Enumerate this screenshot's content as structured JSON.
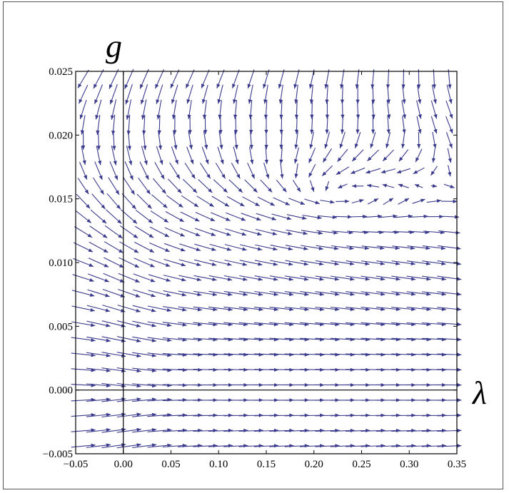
{
  "chart_data": {
    "type": "vector_field",
    "xlabel": "λ",
    "ylabel": "g",
    "xlim": [
      -0.05,
      0.35
    ],
    "ylim": [
      -0.005,
      0.025
    ],
    "x_ticks": [
      "−0.05",
      "0.00",
      "0.05",
      "0.10",
      "0.15",
      "0.20",
      "0.25",
      "0.30",
      "0.35"
    ],
    "x_tick_values": [
      -0.05,
      0.0,
      0.05,
      0.1,
      0.15,
      0.2,
      0.25,
      0.3,
      0.35
    ],
    "y_ticks": [
      "−0.005",
      "0.000",
      "0.005",
      "0.010",
      "0.015",
      "0.020",
      "0.025"
    ],
    "y_tick_values": [
      -0.005,
      0.0,
      0.005,
      0.01,
      0.015,
      0.02,
      0.025
    ],
    "grid": false,
    "reference_lines": {
      "x": 0.0,
      "y": 0.0
    },
    "fixed_points": [
      {
        "lambda": 0.0,
        "g": 0.0
      },
      {
        "lambda": 0.235,
        "g": 0.0155
      }
    ],
    "arrow_color": "#3a3a8c"
  }
}
